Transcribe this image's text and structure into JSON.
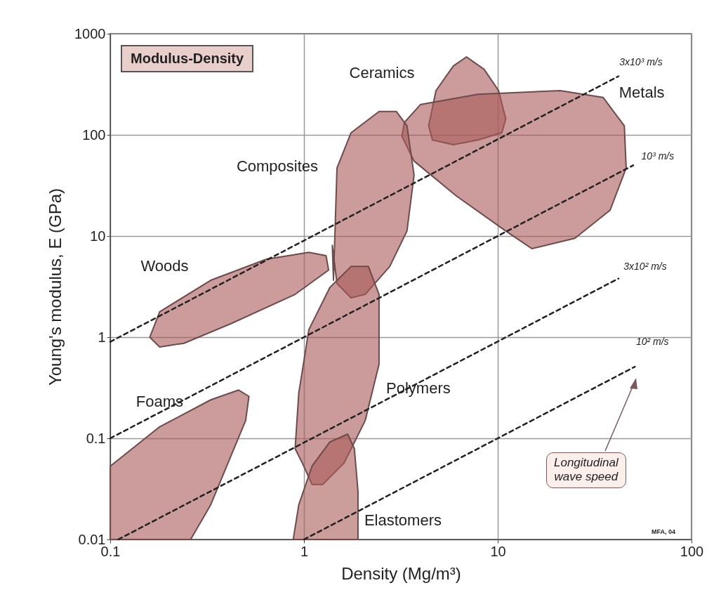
{
  "chart_data": {
    "type": "area",
    "xlabel": "Density  (Mg/m³)",
    "ylabel": "Young's modulus, E (GPa)",
    "log": "xy",
    "grid": true,
    "legend": false,
    "marker": "none",
    "xlim": [
      0.1,
      100
    ],
    "xticks": [
      0.1,
      1,
      10,
      100
    ],
    "ylim": [
      0.01,
      1000
    ],
    "yticks": [
      0.01,
      0.1,
      1,
      10,
      100,
      1000
    ],
    "series": [
      {
        "name": "Ceramics",
        "color": "#a85a58",
        "x": [
          4.8,
          5.9,
          6.9,
          8.5,
          10.1,
          11,
          10.5,
          7.9,
          5.9,
          4.6,
          4.4
        ],
        "values": [
          274,
          480,
          590,
          445,
          274,
          144,
          105,
          89,
          80,
          89,
          123
        ]
      },
      {
        "name": "Metals",
        "color": "#a85a58",
        "x": [
          35,
          45,
          46,
          38,
          25,
          15,
          11,
          6.1,
          3.7,
          3.2,
          3.3,
          4.0,
          7.9,
          21
        ],
        "values": [
          234,
          123,
          47,
          18,
          9.5,
          7.5,
          11.2,
          25,
          55,
          97,
          133,
          200,
          252,
          274
        ]
      },
      {
        "name": "Composites",
        "color": "#a85a58",
        "x": [
          1.48,
          1.75,
          2.44,
          3.0,
          3.4,
          3.7,
          3.4,
          2.77,
          2.07,
          1.75,
          1.48,
          1.4,
          1.42
        ],
        "values": [
          47,
          105,
          170,
          170,
          123,
          40,
          11.2,
          5.0,
          2.65,
          2.45,
          3.4,
          8.1,
          3.65
        ]
      },
      {
        "name": "Woods",
        "color": "#a85a58",
        "x": [
          0.18,
          0.33,
          0.64,
          1.06,
          1.3,
          1.34,
          0.9,
          0.42,
          0.24,
          0.18,
          0.16
        ],
        "values": [
          1.78,
          3.65,
          5.9,
          6.9,
          6.4,
          4.6,
          2.65,
          1.36,
          0.87,
          0.8,
          1.0
        ]
      },
      {
        "name": "Foams",
        "color": "#a85a58",
        "x": [
          0.18,
          0.1,
          0.1,
          0.26,
          0.33,
          0.5,
          0.52,
          0.46,
          0.33
        ],
        "values": [
          0.13,
          0.053,
          0.01,
          0.01,
          0.022,
          0.15,
          0.26,
          0.3,
          0.24
        ]
      },
      {
        "name": "Polymers",
        "color": "#a75957",
        "x": [
          2.44,
          2.07,
          1.61,
          1.25,
          1.1,
          0.98,
          0.9,
          0.94,
          1.06,
          1.36,
          1.75,
          2.15,
          2.44
        ],
        "values": [
          0.54,
          0.15,
          0.057,
          0.035,
          0.035,
          0.057,
          0.079,
          0.28,
          1.19,
          3.1,
          5.0,
          5.0,
          2.65
        ]
      },
      {
        "name": "Elastomers",
        "color": "#a95b59",
        "x": [
          1.9,
          1.9,
          0.88,
          0.94,
          1.1,
          1.36,
          1.68,
          1.82
        ],
        "values": [
          0.03,
          0.01,
          0.01,
          0.022,
          0.053,
          0.092,
          0.11,
          0.079
        ]
      },
      {
        "name": "3x10³ m/s",
        "type": "line",
        "line_style": "dashed",
        "color": "#222222",
        "x": [
          0.1,
          42
        ],
        "values": [
          0.9,
          380
        ]
      },
      {
        "name": "10³ m/s",
        "type": "line",
        "line_style": "dashed",
        "color": "#222222",
        "x": [
          0.1,
          50
        ],
        "values": [
          0.1,
          50
        ]
      },
      {
        "name": "3x10² m/s",
        "type": "line",
        "line_style": "dashed",
        "color": "#222222",
        "x": [
          0.11,
          42
        ],
        "values": [
          0.01,
          3.8
        ]
      },
      {
        "name": "10² m/s",
        "type": "line",
        "line_style": "dashed",
        "color": "#222222",
        "x": [
          1,
          51
        ],
        "values": [
          0.01,
          0.51
        ]
      }
    ],
    "annotations": [
      "Modulus-Density",
      "Longitudinal\nwave speed",
      "MFA, 04"
    ]
  }
}
